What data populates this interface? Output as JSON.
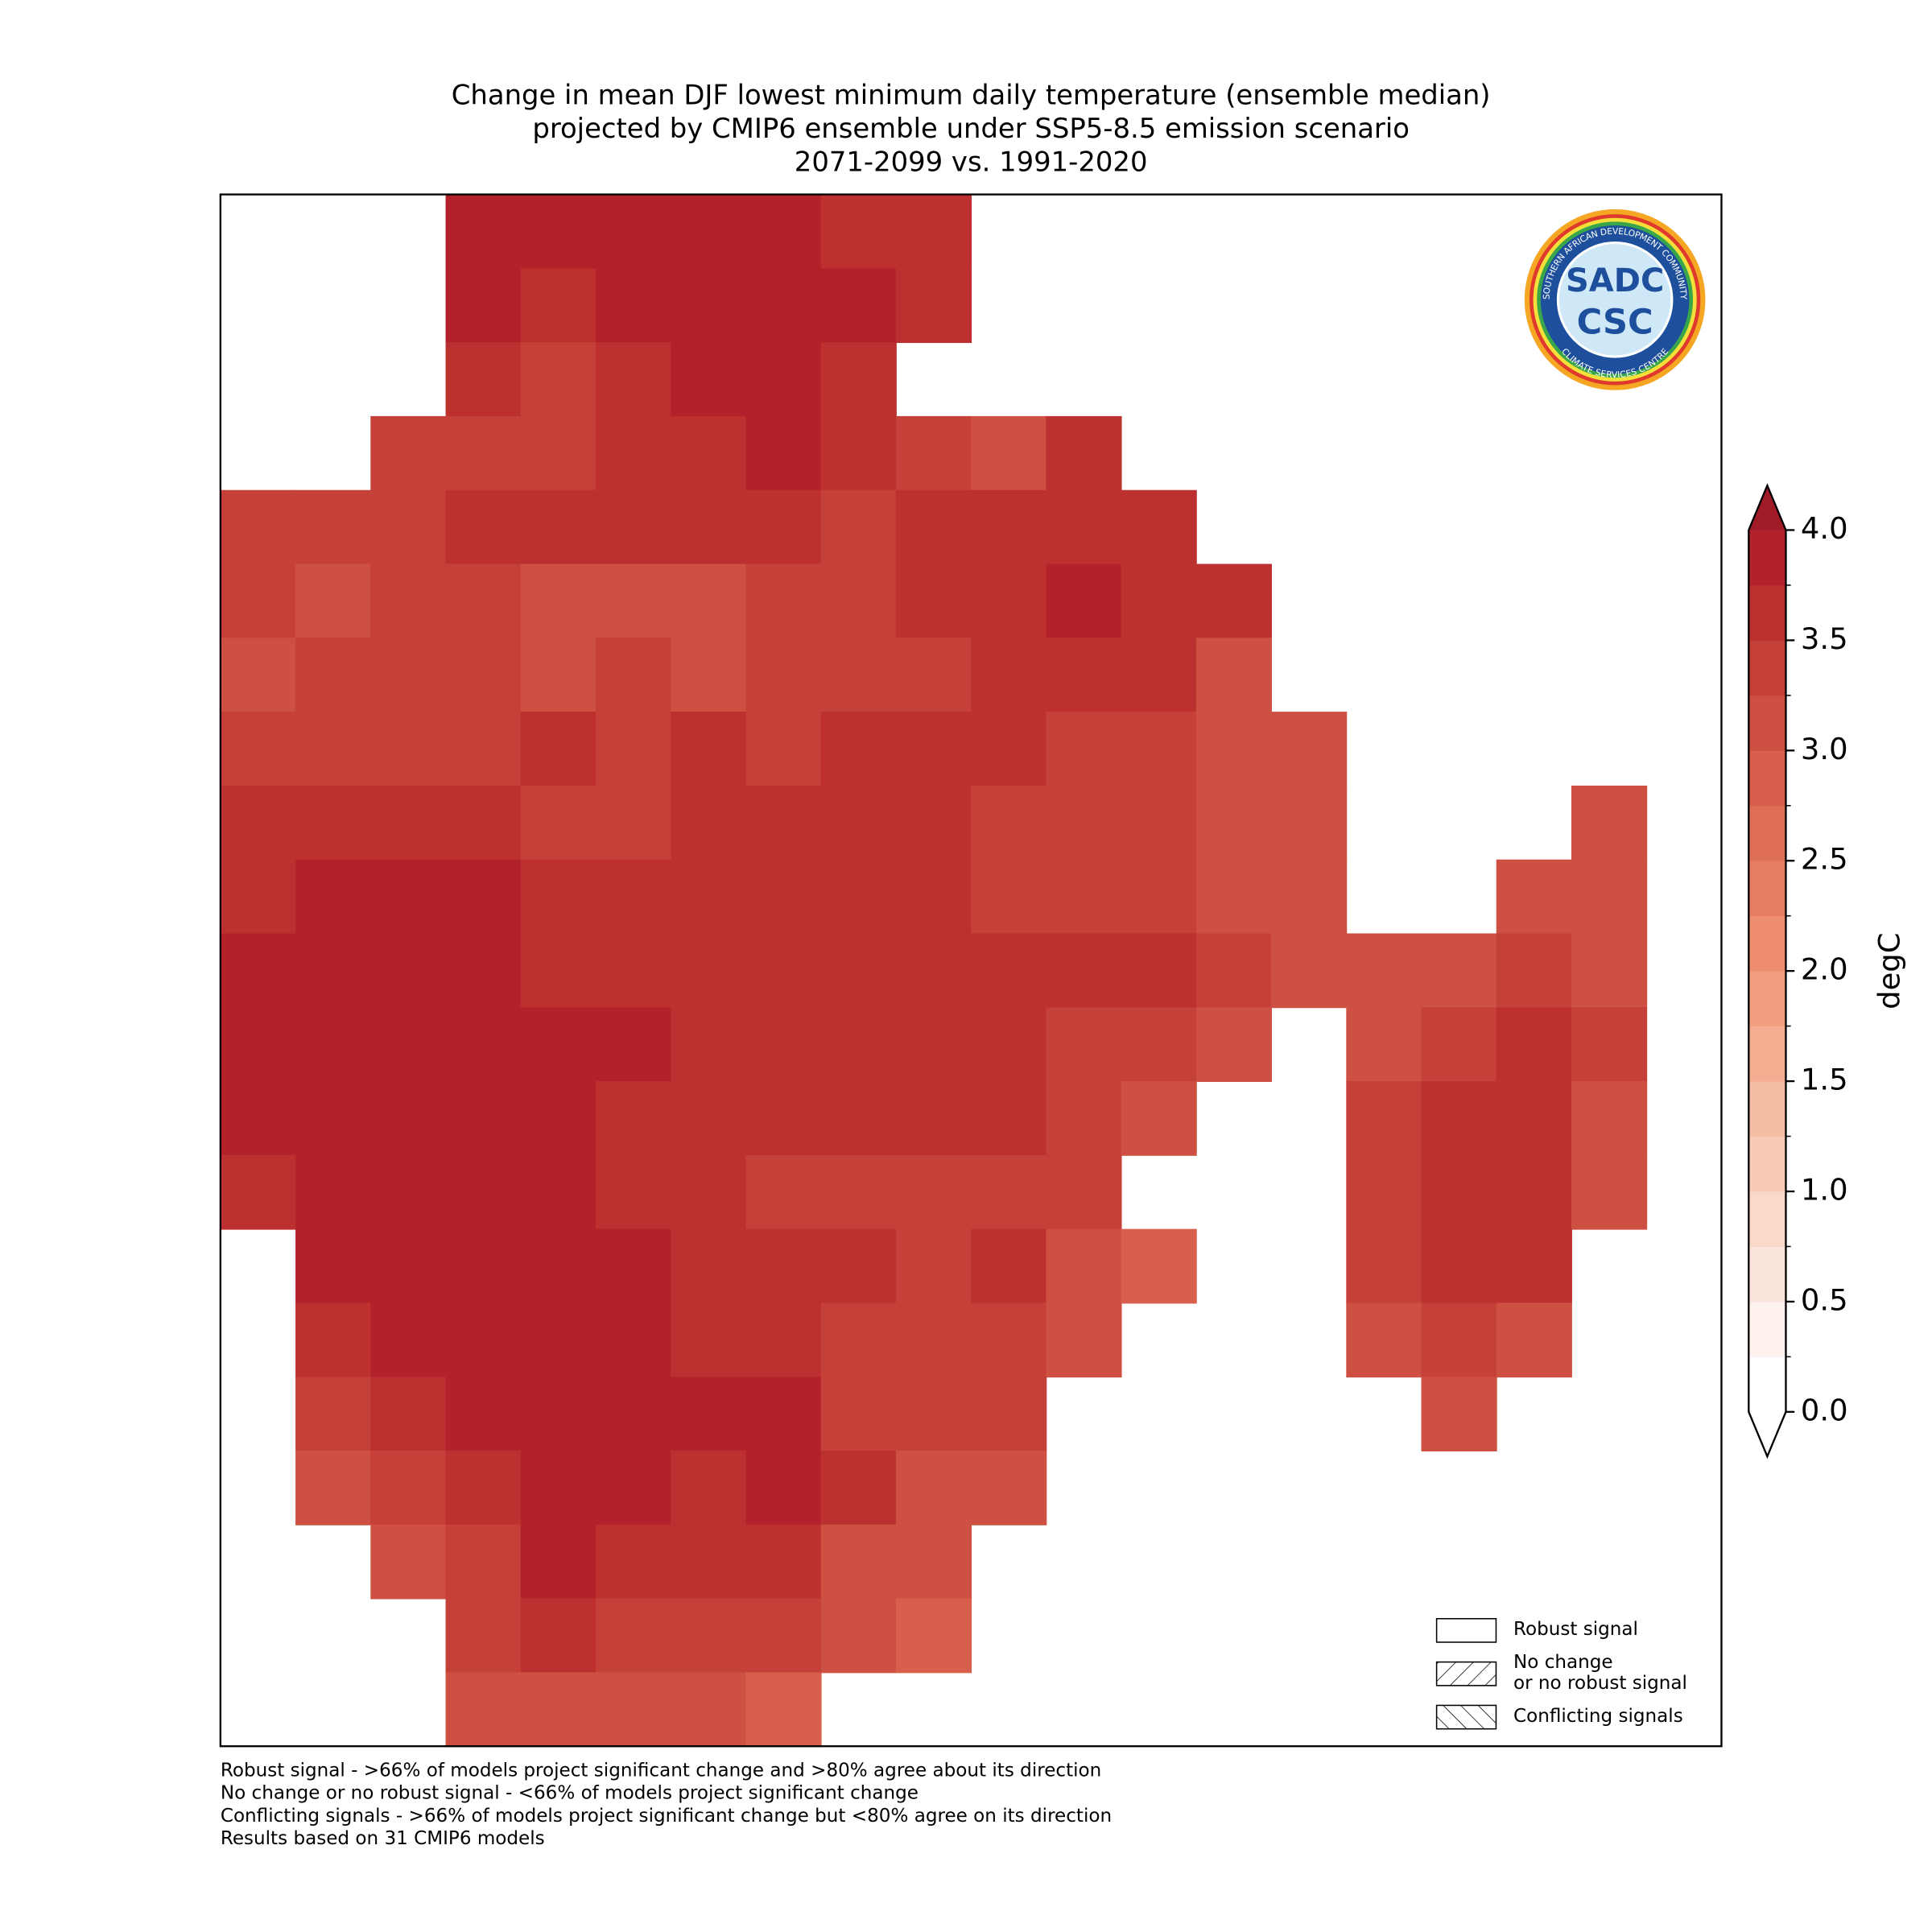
{
  "title": [
    "Change in mean DJF lowest minimum daily temperature (ensemble median)",
    "projected by CMIP6 ensemble under SSP5-8.5 emission scenario",
    "2071-2099 vs. 1991-2020"
  ],
  "map": {
    "grid": [
      [
        null,
        null,
        null,
        3.8,
        3.9,
        3.9,
        3.8,
        3.8,
        3.7,
        3.6,
        null,
        null,
        null,
        null,
        null,
        null,
        null,
        null,
        null,
        null
      ],
      [
        null,
        null,
        null,
        3.8,
        3.6,
        3.8,
        3.8,
        3.9,
        3.8,
        3.6,
        null,
        null,
        null,
        null,
        null,
        null,
        null,
        null,
        null,
        null
      ],
      [
        null,
        null,
        null,
        3.5,
        3.3,
        3.5,
        3.9,
        3.9,
        3.6,
        null,
        null,
        null,
        null,
        null,
        null,
        null,
        null,
        null,
        null,
        null
      ],
      [
        null,
        null,
        3.3,
        3.3,
        3.3,
        3.5,
        3.7,
        3.9,
        3.5,
        3.4,
        3.2,
        3.5,
        null,
        null,
        null,
        null,
        null,
        null,
        null,
        null
      ],
      [
        3.4,
        3.3,
        3.3,
        3.5,
        3.6,
        3.6,
        3.6,
        3.6,
        3.4,
        3.5,
        3.6,
        3.7,
        3.7,
        null,
        null,
        null,
        null,
        null,
        null,
        null
      ],
      [
        3.3,
        3.2,
        3.3,
        3.3,
        3.2,
        3.2,
        3.2,
        3.3,
        3.4,
        3.5,
        3.7,
        3.8,
        3.6,
        3.5,
        null,
        null,
        null,
        null,
        null,
        null
      ],
      [
        3.1,
        3.3,
        3.3,
        3.4,
        3.2,
        3.3,
        3.2,
        3.3,
        3.4,
        3.4,
        3.6,
        3.6,
        3.5,
        3.1,
        null,
        null,
        null,
        null,
        null,
        null
      ],
      [
        3.3,
        3.4,
        3.3,
        3.3,
        3.5,
        3.3,
        3.5,
        3.4,
        3.5,
        3.5,
        3.5,
        3.4,
        3.3,
        3.2,
        3.0,
        null,
        null,
        null,
        null,
        null
      ],
      [
        3.5,
        3.6,
        3.7,
        3.5,
        3.4,
        3.4,
        3.5,
        3.6,
        3.6,
        3.6,
        3.4,
        3.3,
        3.3,
        3.2,
        3.0,
        null,
        null,
        null,
        3.1,
        null
      ],
      [
        3.7,
        3.9,
        3.9,
        3.8,
        3.6,
        3.5,
        3.6,
        3.5,
        3.6,
        3.6,
        3.4,
        3.4,
        3.3,
        3.1,
        3.0,
        null,
        null,
        3.2,
        3.1,
        null
      ],
      [
        3.8,
        3.9,
        3.9,
        3.9,
        3.7,
        3.6,
        3.6,
        3.5,
        3.5,
        3.5,
        3.5,
        3.6,
        3.5,
        3.3,
        3.0,
        3.1,
        3.1,
        3.3,
        3.2,
        null
      ],
      [
        3.8,
        3.9,
        3.9,
        3.8,
        3.8,
        3.9,
        3.7,
        3.6,
        3.5,
        3.6,
        3.5,
        3.3,
        3.3,
        3.2,
        null,
        3.2,
        3.4,
        3.5,
        3.3,
        null
      ],
      [
        3.8,
        3.9,
        3.9,
        3.9,
        3.9,
        3.7,
        3.6,
        3.6,
        3.5,
        3.5,
        3.5,
        3.3,
        3.2,
        null,
        null,
        3.3,
        3.6,
        3.5,
        3.2,
        null
      ],
      [
        3.6,
        3.9,
        3.9,
        3.9,
        3.9,
        3.7,
        3.5,
        3.4,
        3.3,
        3.4,
        3.4,
        3.3,
        null,
        null,
        null,
        3.3,
        3.6,
        3.5,
        3.2,
        null
      ],
      [
        null,
        3.8,
        3.9,
        3.9,
        3.9,
        3.8,
        3.6,
        3.6,
        3.5,
        3.4,
        3.5,
        3.2,
        2.9,
        null,
        null,
        3.4,
        3.5,
        3.5,
        null,
        null
      ],
      [
        null,
        3.6,
        3.9,
        3.9,
        3.9,
        3.8,
        3.7,
        3.5,
        3.4,
        3.3,
        3.3,
        3.2,
        null,
        null,
        null,
        3.2,
        3.3,
        3.2,
        null,
        null
      ],
      [
        null,
        3.3,
        3.6,
        3.9,
        3.9,
        3.8,
        3.8,
        3.8,
        3.4,
        3.3,
        3.3,
        null,
        null,
        null,
        null,
        null,
        3.0,
        null,
        null,
        null
      ],
      [
        null,
        3.1,
        3.3,
        3.7,
        3.8,
        3.8,
        3.6,
        3.8,
        3.6,
        3.2,
        3.1,
        null,
        null,
        null,
        null,
        null,
        null,
        null,
        null,
        null
      ],
      [
        null,
        null,
        3.1,
        3.4,
        3.8,
        3.6,
        3.5,
        3.5,
        3.2,
        3.1,
        null,
        null,
        null,
        null,
        null,
        null,
        null,
        null,
        null,
        null
      ],
      [
        null,
        null,
        null,
        3.4,
        3.7,
        3.4,
        3.3,
        3.3,
        3.0,
        2.9,
        null,
        null,
        null,
        null,
        null,
        null,
        null,
        null,
        null,
        null
      ],
      [
        null,
        null,
        null,
        3.0,
        3.1,
        3.2,
        3.0,
        2.9,
        null,
        null,
        null,
        null,
        null,
        null,
        null,
        null,
        null,
        null,
        null,
        null
      ]
    ]
  },
  "colorbar": {
    "label": "degC",
    "lim": [
      0,
      4
    ],
    "ticks": [
      {
        "value": 0,
        "label": "0.0"
      },
      {
        "value": 0.5,
        "label": "0.5"
      },
      {
        "value": 1,
        "label": "1.0"
      },
      {
        "value": 1.5,
        "label": "1.5"
      },
      {
        "value": 2,
        "label": "2.0"
      },
      {
        "value": 2.5,
        "label": "2.5"
      },
      {
        "value": 3,
        "label": "3.0"
      },
      {
        "value": 3.5,
        "label": "3.5"
      },
      {
        "value": 4,
        "label": "4.0"
      }
    ],
    "colors": [
      "#ffffff",
      "#fdf2ee",
      "#fbe5dc",
      "#fad8ca",
      "#f8cbb8",
      "#f6bda5",
      "#f4ad91",
      "#f29e7f",
      "#ee8e6f",
      "#e77e63",
      "#df6e57",
      "#d75f4c",
      "#ce5042",
      "#c54038",
      "#bc3130",
      "#b3222b"
    ],
    "under_color": "#ffffff",
    "over_color": "#a11a28"
  },
  "legend": [
    {
      "label": [
        "Robust signal"
      ]
    },
    {
      "label": [
        "No change",
        "or no robust signal"
      ]
    },
    {
      "label": [
        "Conflicting signals"
      ]
    }
  ],
  "footnotes": [
    "Robust signal - >66% of models project significant change and >80% agree about its direction",
    "No change or no robust signal - <66% of models project significant change",
    "Conflicting signals - >66% of models project significant change but <80% agree on its direction",
    "Results based on 31 CMIP6 models"
  ],
  "logo": {
    "top": "SADC",
    "bottom": "CSC",
    "ring_top": "SOUTHERN AFRICAN DEVELOPMENT COMMUNITY",
    "ring_bottom": "CLIMATE SERVICES CENTRE"
  }
}
